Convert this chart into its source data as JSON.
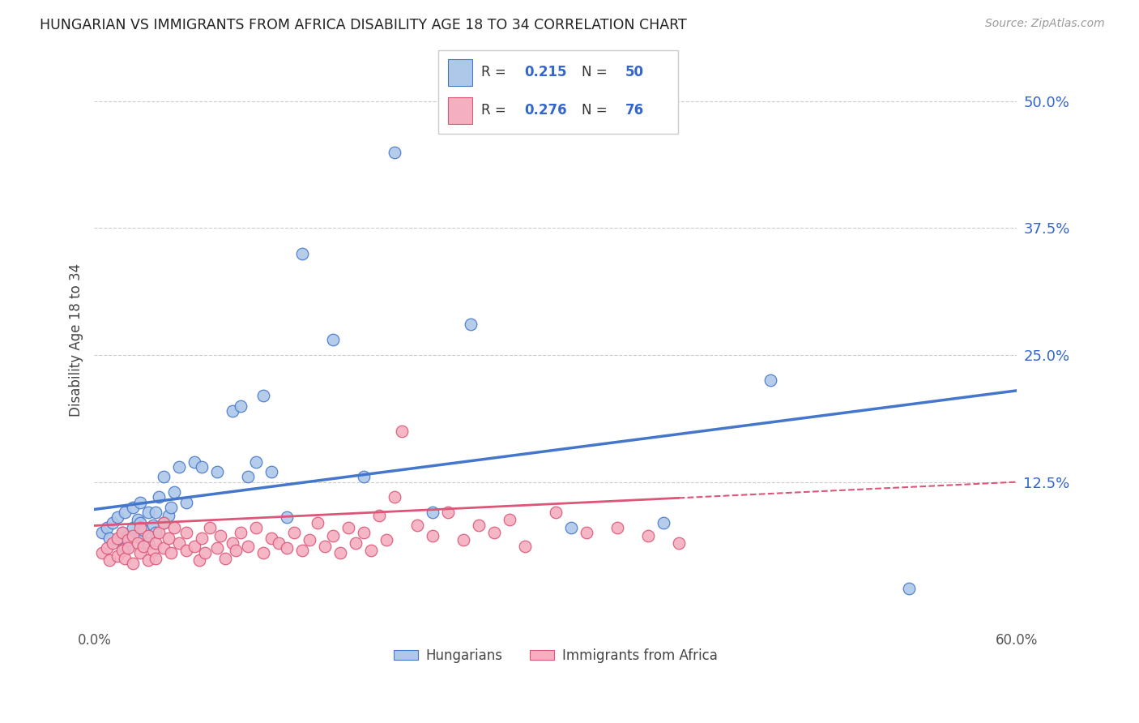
{
  "title": "HUNGARIAN VS IMMIGRANTS FROM AFRICA DISABILITY AGE 18 TO 34 CORRELATION CHART",
  "source": "Source: ZipAtlas.com",
  "ylabel": "Disability Age 18 to 34",
  "right_yticks": [
    "50.0%",
    "37.5%",
    "25.0%",
    "12.5%"
  ],
  "right_ytick_vals": [
    0.5,
    0.375,
    0.25,
    0.125
  ],
  "xlim": [
    0.0,
    0.6
  ],
  "ylim": [
    -0.015,
    0.545
  ],
  "legend_r1": "0.215",
  "legend_n1": "50",
  "legend_r2": "0.276",
  "legend_n2": "76",
  "color_hungarian": "#adc8e8",
  "color_africa": "#f4afc0",
  "color_line_hungarian": "#4477cc",
  "color_line_africa": "#dd5577",
  "color_blue_text": "#3366cc",
  "grid_color": "#cccccc",
  "background_color": "#ffffff",
  "hungarian_x": [
    0.005,
    0.008,
    0.01,
    0.012,
    0.015,
    0.015,
    0.018,
    0.02,
    0.02,
    0.022,
    0.025,
    0.025,
    0.028,
    0.03,
    0.03,
    0.03,
    0.032,
    0.035,
    0.035,
    0.038,
    0.04,
    0.04,
    0.042,
    0.045,
    0.045,
    0.048,
    0.05,
    0.052,
    0.055,
    0.06,
    0.065,
    0.07,
    0.08,
    0.09,
    0.095,
    0.1,
    0.105,
    0.11,
    0.115,
    0.125,
    0.135,
    0.155,
    0.175,
    0.195,
    0.22,
    0.245,
    0.31,
    0.37,
    0.44,
    0.53
  ],
  "hungarian_y": [
    0.075,
    0.08,
    0.07,
    0.085,
    0.068,
    0.09,
    0.075,
    0.06,
    0.095,
    0.072,
    0.08,
    0.1,
    0.088,
    0.07,
    0.085,
    0.105,
    0.078,
    0.065,
    0.095,
    0.082,
    0.075,
    0.095,
    0.11,
    0.085,
    0.13,
    0.092,
    0.1,
    0.115,
    0.14,
    0.105,
    0.145,
    0.14,
    0.135,
    0.195,
    0.2,
    0.13,
    0.145,
    0.21,
    0.135,
    0.09,
    0.35,
    0.265,
    0.13,
    0.45,
    0.095,
    0.28,
    0.08,
    0.085,
    0.225,
    0.02
  ],
  "africa_x": [
    0.005,
    0.008,
    0.01,
    0.012,
    0.015,
    0.015,
    0.018,
    0.018,
    0.02,
    0.022,
    0.022,
    0.025,
    0.025,
    0.028,
    0.03,
    0.03,
    0.032,
    0.035,
    0.035,
    0.038,
    0.04,
    0.04,
    0.042,
    0.045,
    0.045,
    0.048,
    0.05,
    0.052,
    0.055,
    0.06,
    0.06,
    0.065,
    0.068,
    0.07,
    0.072,
    0.075,
    0.08,
    0.082,
    0.085,
    0.09,
    0.092,
    0.095,
    0.1,
    0.105,
    0.11,
    0.115,
    0.12,
    0.125,
    0.13,
    0.135,
    0.14,
    0.145,
    0.15,
    0.155,
    0.16,
    0.165,
    0.17,
    0.175,
    0.18,
    0.185,
    0.19,
    0.195,
    0.2,
    0.21,
    0.22,
    0.23,
    0.24,
    0.25,
    0.26,
    0.27,
    0.28,
    0.3,
    0.32,
    0.34,
    0.36,
    0.38
  ],
  "africa_y": [
    0.055,
    0.06,
    0.048,
    0.065,
    0.052,
    0.07,
    0.058,
    0.075,
    0.05,
    0.068,
    0.06,
    0.072,
    0.045,
    0.065,
    0.055,
    0.08,
    0.062,
    0.048,
    0.072,
    0.058,
    0.065,
    0.05,
    0.075,
    0.06,
    0.085,
    0.07,
    0.055,
    0.08,
    0.065,
    0.058,
    0.075,
    0.062,
    0.048,
    0.07,
    0.055,
    0.08,
    0.06,
    0.072,
    0.05,
    0.065,
    0.058,
    0.075,
    0.062,
    0.08,
    0.055,
    0.07,
    0.065,
    0.06,
    0.075,
    0.058,
    0.068,
    0.085,
    0.062,
    0.072,
    0.055,
    0.08,
    0.065,
    0.075,
    0.058,
    0.092,
    0.068,
    0.11,
    0.175,
    0.082,
    0.072,
    0.095,
    0.068,
    0.082,
    0.075,
    0.088,
    0.062,
    0.095,
    0.075,
    0.08,
    0.072,
    0.065
  ],
  "line_h_x0": 0.0,
  "line_h_y0": 0.098,
  "line_h_x1": 0.6,
  "line_h_y1": 0.215,
  "line_a_x0": 0.0,
  "line_a_y0": 0.082,
  "line_a_x1": 0.6,
  "line_a_y1": 0.125,
  "line_a_solid_end": 0.38
}
